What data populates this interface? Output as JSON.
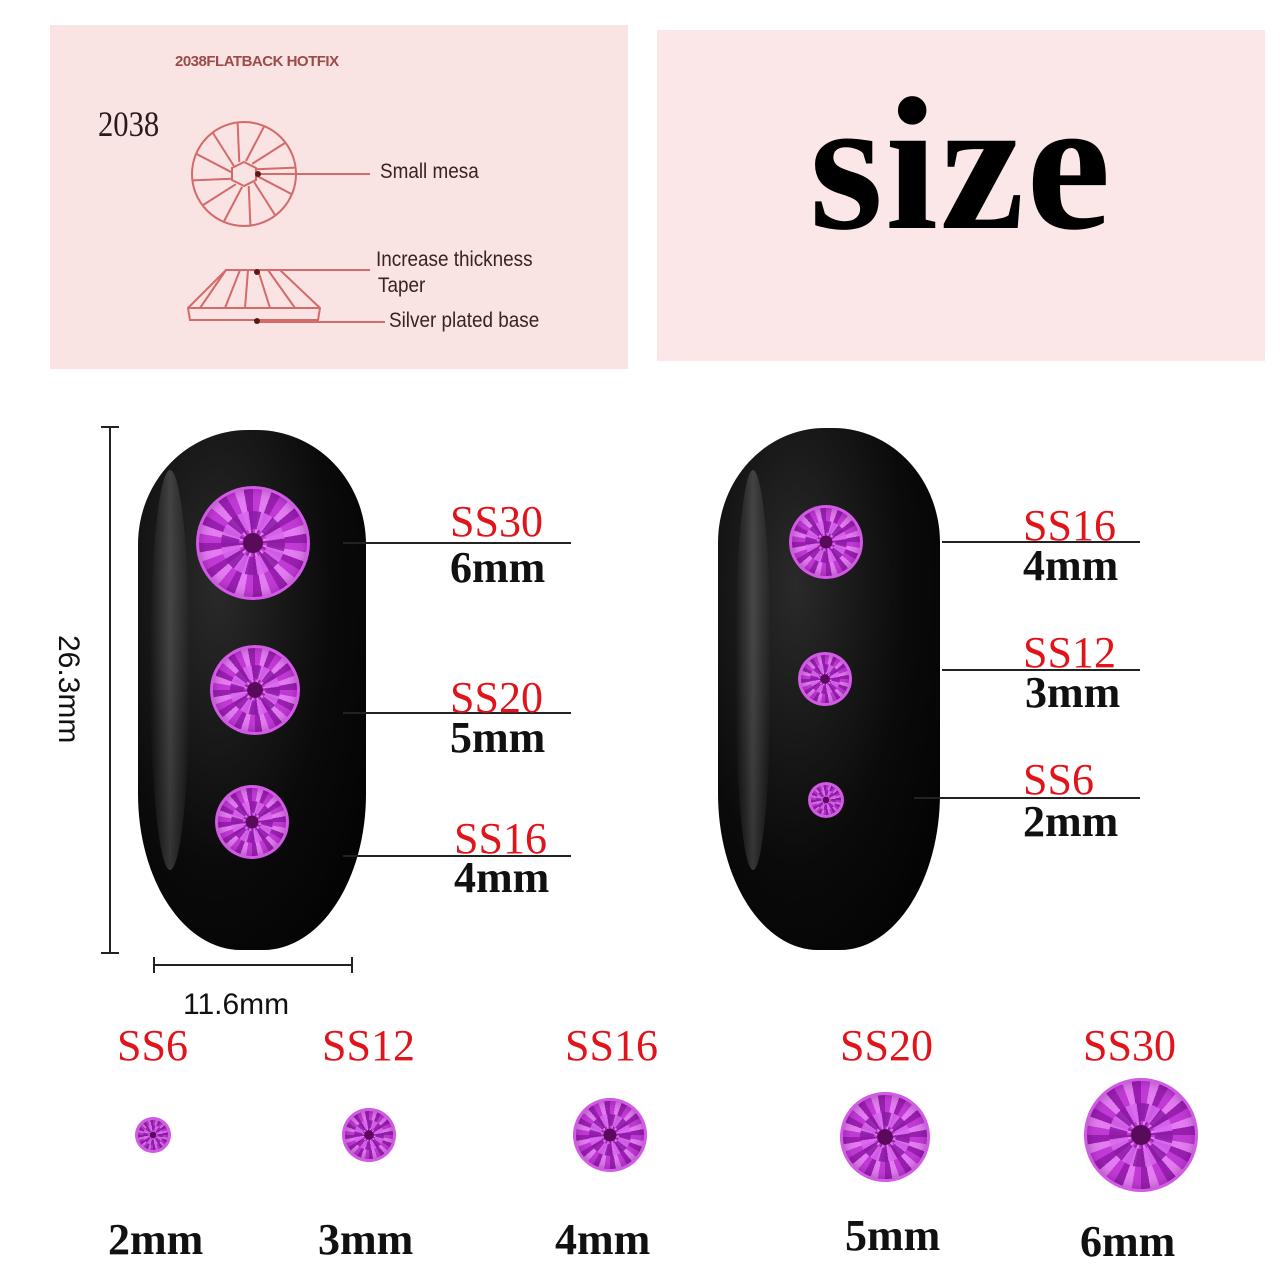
{
  "spec_panel": {
    "title": "2038FLATBACK HOTFIX",
    "code": "2038",
    "labels": [
      "Small mesa",
      "Increase thickness",
      "Taper",
      "Silver plated base"
    ],
    "line_color": "#d46a6a"
  },
  "size_panel": {
    "word": "size"
  },
  "dimensions": {
    "height": "26.3mm",
    "width": "11.6mm"
  },
  "left_nail": [
    {
      "ss": "SS30",
      "mm": "6mm"
    },
    {
      "ss": "SS20",
      "mm": "5mm"
    },
    {
      "ss": "SS16",
      "mm": "4mm"
    }
  ],
  "right_nail": [
    {
      "ss": "SS16",
      "mm": "4mm"
    },
    {
      "ss": "SS12",
      "mm": "3mm"
    },
    {
      "ss": "SS6",
      "mm": "2mm"
    }
  ],
  "bottom_row": [
    {
      "ss": "SS6",
      "mm": "2mm"
    },
    {
      "ss": "SS12",
      "mm": "3mm"
    },
    {
      "ss": "SS16",
      "mm": "4mm"
    },
    {
      "ss": "SS20",
      "mm": "5mm"
    },
    {
      "ss": "SS30",
      "mm": "6mm"
    }
  ],
  "colors": {
    "ss_label": "#e0141a",
    "gem": "#b032c8",
    "panel": "#f9e3e3"
  }
}
